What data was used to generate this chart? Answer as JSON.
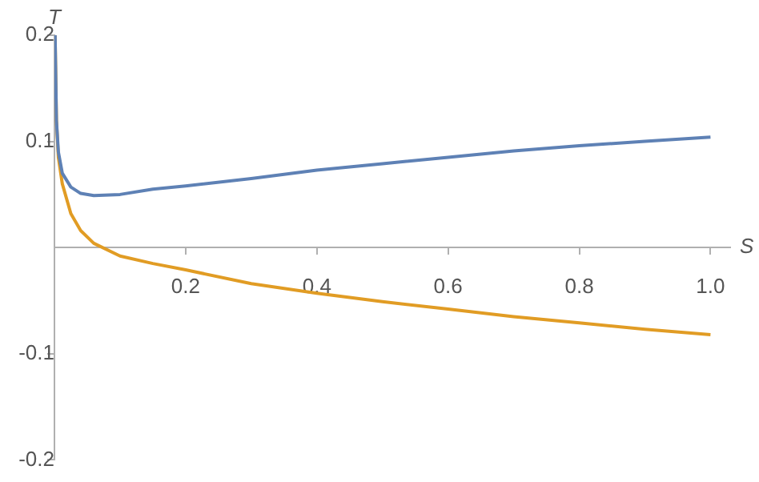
{
  "chart_data": {
    "type": "line",
    "xlabel": "S",
    "ylabel": "T",
    "xlim": [
      0,
      1.03
    ],
    "ylim": [
      -0.2,
      0.2
    ],
    "xticks": [
      0.2,
      0.4,
      0.6,
      0.8,
      {
        "value": 1,
        "label": "1.0"
      }
    ],
    "yticks": [
      -0.2,
      -0.1,
      0.1,
      0.2
    ],
    "grid": false,
    "legend": false,
    "marker": "none",
    "line_style": "solid",
    "series": [
      {
        "color": "#5e81b5",
        "x": [
          0.001,
          0.003,
          0.006,
          0.012,
          0.025,
          0.04,
          0.06,
          0.1,
          0.15,
          0.2,
          0.3,
          0.4,
          0.5,
          0.6,
          0.7,
          0.8,
          0.9,
          1.0
        ],
        "values": [
          0.2,
          0.12,
          0.09,
          0.07,
          0.057,
          0.051,
          0.049,
          0.05,
          0.055,
          0.058,
          0.065,
          0.073,
          0.079,
          0.085,
          0.091,
          0.096,
          0.1,
          0.104
        ]
      },
      {
        "color": "#e19c24",
        "x": [
          0.001,
          0.003,
          0.006,
          0.012,
          0.025,
          0.04,
          0.06,
          0.1,
          0.15,
          0.2,
          0.3,
          0.4,
          0.5,
          0.6,
          0.7,
          0.8,
          0.9,
          1.0
        ],
        "values": [
          0.2,
          0.12,
          0.085,
          0.06,
          0.032,
          0.016,
          0.004,
          -0.008,
          -0.015,
          -0.021,
          -0.034,
          -0.043,
          -0.051,
          -0.058,
          -0.065,
          -0.071,
          -0.077,
          -0.082
        ]
      }
    ]
  }
}
